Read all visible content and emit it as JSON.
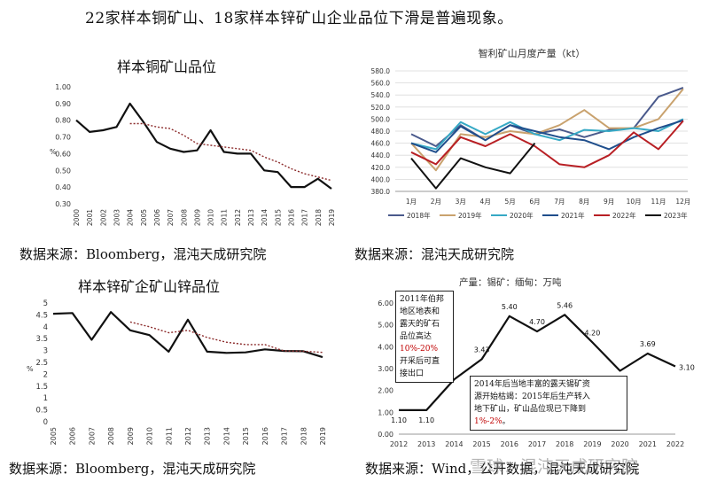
{
  "headline": "22家样本铜矿山、18家样本锌矿山企业品位下滑是普遍现象。",
  "sources": {
    "s1": "数据来源：Bloomberg，混沌天成研究院",
    "s2": "数据来源：混沌天成研究院",
    "s3": "数据来源：Bloomberg，混沌天成研究院",
    "s4": "数据来源：Wind，公开数据，混沌天成研究院"
  },
  "watermark": "雪球：混沌天成研究院",
  "notes": {
    "n1_lines": [
      "2011年伯邦",
      "地区地表和",
      "露天的矿石",
      "品位高达"
    ],
    "n1_red": "10%-20%",
    "n1_tail": [
      "开采后可直",
      "接出口"
    ],
    "n2_lines": [
      "2014年后当地丰富的露天锡矿资",
      "源开始枯竭：2015年后生产转入",
      "地下矿山，矿山品位现已下降到"
    ],
    "n2_red": "1%-2%",
    "n2_tail": "。"
  },
  "chart_data": [
    {
      "type": "line",
      "title": "样本铜矿山品位",
      "ylabel": "%",
      "x": [
        "2000",
        "2001",
        "2002",
        "2003",
        "2004",
        "2005",
        "2006",
        "2007",
        "2008",
        "2009",
        "2010",
        "2011",
        "2012",
        "2013",
        "2014",
        "2015",
        "2016",
        "2017",
        "2018",
        "2019"
      ],
      "ylim": [
        0.3,
        1.0
      ],
      "yticks": [
        "1.00",
        "0.90",
        "0.80",
        "0.70",
        "0.60",
        "0.50",
        "0.40",
        "0.30"
      ],
      "series": [
        {
          "values": [
            0.8,
            0.73,
            0.74,
            0.76,
            0.9,
            0.79,
            0.67,
            0.63,
            0.61,
            0.62,
            0.74,
            0.61,
            0.6,
            0.6,
            0.5,
            0.49,
            0.4,
            0.4,
            0.45,
            0.39
          ],
          "color": "#111111",
          "style": "solid"
        },
        {
          "values": [
            null,
            null,
            null,
            null,
            0.78,
            0.78,
            0.76,
            0.75,
            0.71,
            0.66,
            0.65,
            0.64,
            0.63,
            0.62,
            0.58,
            0.55,
            0.51,
            0.48,
            0.46,
            0.44
          ],
          "color": "#8b2b2b",
          "style": "dotted"
        }
      ]
    },
    {
      "type": "line",
      "title": "智利矿山月度产量（kt）",
      "x": [
        "1月",
        "2月",
        "3月",
        "4月",
        "5月",
        "6月",
        "7月",
        "8月",
        "9月",
        "10月",
        "11月",
        "12月"
      ],
      "ylim": [
        380,
        580
      ],
      "yticks": [
        "580.0",
        "560.0",
        "540.0",
        "520.0",
        "500.0",
        "480.0",
        "460.0",
        "440.0",
        "420.0",
        "400.0",
        "380.0"
      ],
      "series": [
        {
          "name": "2018年",
          "color": "#4a5a8c",
          "values": [
            475,
            455,
            490,
            465,
            490,
            475,
            483,
            470,
            482,
            485,
            537,
            552
          ]
        },
        {
          "name": "2019年",
          "color": "#c9a26e",
          "values": [
            460,
            415,
            475,
            470,
            480,
            475,
            490,
            515,
            485,
            485,
            500,
            550
          ]
        },
        {
          "name": "2020年",
          "color": "#36a9c5",
          "values": [
            460,
            450,
            495,
            475,
            495,
            475,
            465,
            482,
            480,
            485,
            480,
            500
          ]
        },
        {
          "name": "2021年",
          "color": "#1f4e8c",
          "values": [
            460,
            445,
            488,
            465,
            490,
            480,
            470,
            465,
            450,
            470,
            485,
            498
          ]
        },
        {
          "name": "2022年",
          "color": "#b81f24",
          "values": [
            445,
            425,
            470,
            455,
            475,
            455,
            425,
            420,
            440,
            478,
            450,
            497
          ]
        },
        {
          "name": "2023年",
          "color": "#111111",
          "values": [
            435,
            385,
            435,
            420,
            410,
            460,
            null,
            null,
            null,
            null,
            null,
            null
          ]
        }
      ]
    },
    {
      "type": "line",
      "title": "样本锌矿企矿山锌品位",
      "ylabel": "%",
      "x": [
        "2005",
        "2006",
        "2007",
        "2008",
        "2009",
        "2010",
        "2011",
        "2012",
        "2013",
        "2014",
        "2015",
        "2016",
        "2017",
        "2018",
        "2019"
      ],
      "ylim": [
        0,
        5
      ],
      "yticks": [
        "5",
        "4.5",
        "4",
        "3.5",
        "3",
        "2.5",
        "2",
        "1.5",
        "1",
        "0.5",
        "0"
      ],
      "series": [
        {
          "values": [
            4.55,
            4.58,
            3.45,
            4.62,
            3.85,
            3.65,
            2.95,
            4.3,
            2.95,
            2.9,
            2.92,
            3.05,
            2.98,
            2.97,
            2.72
          ],
          "color": "#111111",
          "style": "solid"
        },
        {
          "values": [
            null,
            null,
            null,
            null,
            4.2,
            4.0,
            3.75,
            3.85,
            3.55,
            3.35,
            3.25,
            3.25,
            2.98,
            2.97,
            2.92
          ],
          "color": "#8b2b2b",
          "style": "dotted"
        }
      ]
    },
    {
      "type": "line",
      "title": "产量：锡矿：缅甸：万吨",
      "x": [
        "2012",
        "2013",
        "2014",
        "2015",
        "2016",
        "2017",
        "2018",
        "2019",
        "2020",
        "2021",
        "2022"
      ],
      "ylim": [
        0,
        6
      ],
      "yticks": [
        "6.00",
        "5.00",
        "4.00",
        "3.00",
        "2.00",
        "1.00",
        "0.00"
      ],
      "series": [
        {
          "values": [
            1.1,
            1.1,
            2.5,
            3.43,
            5.4,
            4.7,
            5.46,
            4.2,
            2.9,
            3.69,
            3.1
          ],
          "color": "#111111",
          "style": "solid"
        }
      ],
      "labels": [
        "1.10",
        "1.10",
        "",
        "3.43",
        "5.40",
        "4.70",
        "5.46",
        "4.20",
        "2.90",
        "3.69",
        "3.10"
      ]
    }
  ]
}
